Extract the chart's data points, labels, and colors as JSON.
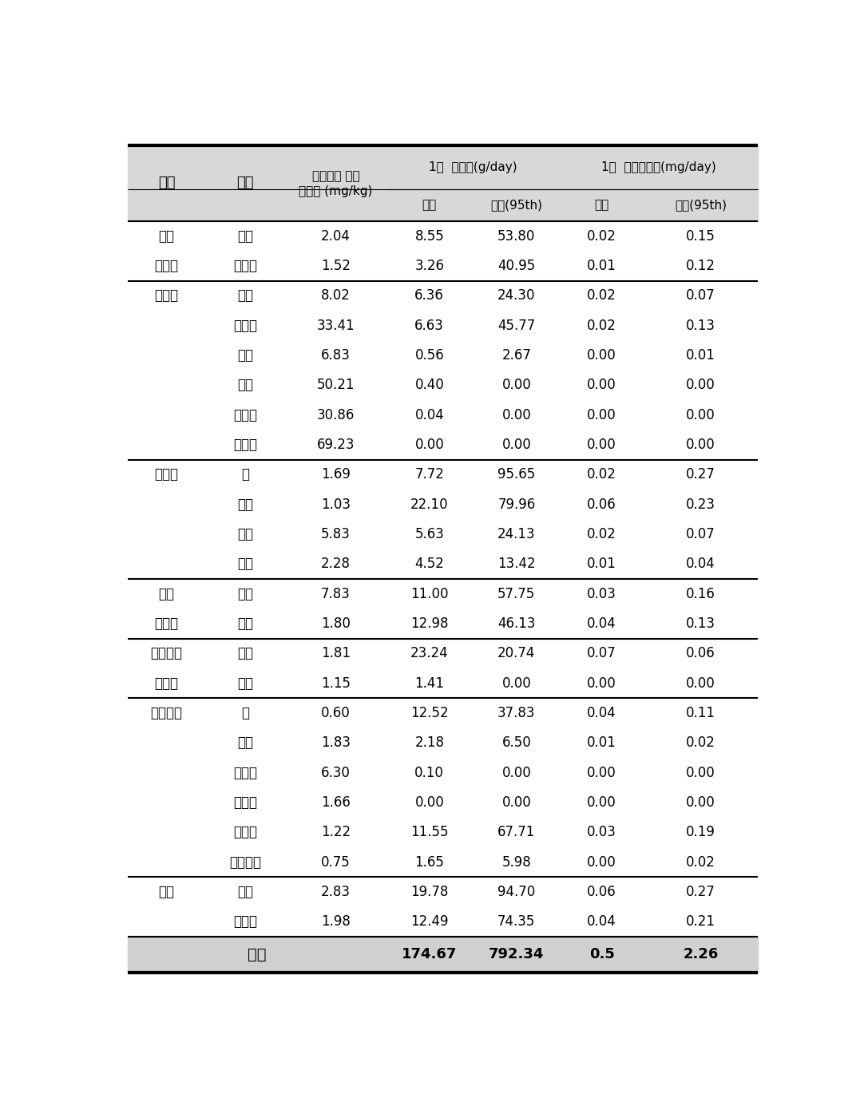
{
  "headers_top": [
    "1일  섭취량(g/day)",
    "1일  인체노출량(mg/day)"
  ],
  "headers_sub": [
    "평균",
    "극단(95th)",
    "평균",
    "극단(95th)"
  ],
  "col0_label": "분류",
  "col1_label": "품목",
  "col2_label": "아질산염 평균\n검출량 (mg/kg)",
  "rows": [
    [
      "결구",
      "배추",
      "2.04",
      "8.55",
      "53.80",
      "0.02",
      "0.15"
    ],
    [
      "엽채류",
      "양배추",
      "1.52",
      "3.26",
      "40.95",
      "0.01",
      "0.12"
    ],
    [
      "엽채류",
      "상추",
      "8.02",
      "6.36",
      "24.30",
      "0.02",
      "0.07"
    ],
    [
      "",
      "시금치",
      "33.41",
      "6.63",
      "45.77",
      "0.02",
      "0.13"
    ],
    [
      "",
      "쑥갓",
      "6.83",
      "0.56",
      "2.67",
      "0.00",
      "0.01"
    ],
    [
      "",
      "근대",
      "50.21",
      "0.40",
      "0.00",
      "0.00",
      "0.00"
    ],
    [
      "",
      "치커리",
      "30.86",
      "0.04",
      "0.00",
      "0.00",
      "0.00"
    ],
    [
      "",
      "파슬리",
      "69.23",
      "0.00",
      "0.00",
      "0.00",
      "0.00"
    ],
    [
      "근채류",
      "무",
      "1.69",
      "7.72",
      "95.65",
      "0.02",
      "0.27"
    ],
    [
      "",
      "양파",
      "1.03",
      "22.10",
      "79.96",
      "0.06",
      "0.23"
    ],
    [
      "",
      "당근",
      "5.83",
      "5.63",
      "24.13",
      "0.02",
      "0.07"
    ],
    [
      "",
      "마늘",
      "2.28",
      "4.52",
      "13.42",
      "0.01",
      "0.04"
    ],
    [
      "박과",
      "호박",
      "7.83",
      "11.00",
      "57.75",
      "0.03",
      "0.16"
    ],
    [
      "과채류",
      "오이",
      "1.80",
      "12.98",
      "46.13",
      "0.04",
      "0.13"
    ],
    [
      "박꼬이외",
      "고추",
      "1.81",
      "23.24",
      "20.74",
      "0.07",
      "0.06"
    ],
    [
      "과채류",
      "가지",
      "1.15",
      "1.41",
      "0.00",
      "0.00",
      "0.00"
    ],
    [
      "엽경채류",
      "파",
      "0.60",
      "12.52",
      "37.83",
      "0.04",
      "0.11"
    ],
    [
      "",
      "부추",
      "1.83",
      "2.18",
      "6.50",
      "0.01",
      "0.02"
    ],
    [
      "",
      "샐러리",
      "6.30",
      "0.10",
      "0.00",
      "0.00",
      "0.00"
    ],
    [
      "",
      "콜라비",
      "1.66",
      "0.00",
      "0.00",
      "0.00",
      "0.00"
    ],
    [
      "",
      "콩나물",
      "1.22",
      "11.55",
      "67.71",
      "0.03",
      "0.19"
    ],
    [
      "",
      "숙주나물",
      "0.75",
      "1.65",
      "5.98",
      "0.00",
      "0.02"
    ],
    [
      "서류",
      "감자",
      "2.83",
      "19.78",
      "94.70",
      "0.06",
      "0.27"
    ],
    [
      "",
      "고구마",
      "1.98",
      "12.49",
      "74.35",
      "0.04",
      "0.21"
    ]
  ],
  "total_row": [
    "총합",
    "",
    "",
    "174.67",
    "792.34",
    "0.5",
    "2.26"
  ],
  "group_dividers_after": [
    1,
    7,
    11,
    13,
    15,
    21,
    23
  ],
  "header_bg": "#d8d8d8",
  "data_bg": "#ffffff",
  "total_bg": "#d0d0d0",
  "outer_border_lw": 3.0,
  "inner_border_lw": 1.5,
  "thin_lw": 0.8
}
